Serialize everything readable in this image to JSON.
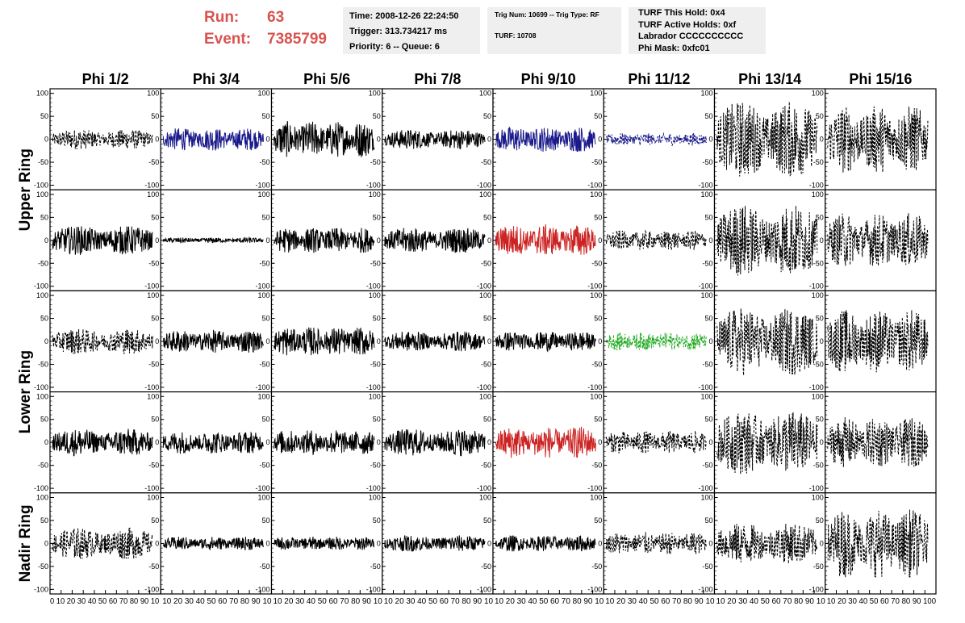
{
  "header": {
    "run_label": "Run:",
    "run_value": "63",
    "event_label": "Event:",
    "event_value": "7385799"
  },
  "info_time": {
    "line1": "Time: 2008-12-26 22:24:50",
    "line2": "Trigger: 313.734217 ms",
    "line3": "Priority: 6 -- Queue: 6"
  },
  "info_trig": {
    "line1": "Trig Num: 10699 -- Trig Type: RF",
    "line2": "TURF: 10708"
  },
  "info_turf": {
    "line1": "TURF This Hold: 0x4",
    "line2": "TURF Active Holds: 0xf",
    "line3": "Labrador CCCCCCCCCC",
    "line4": "Phi Mask: 0xfc01"
  },
  "chart_data": {
    "type": "line",
    "columns": [
      "Phi 1/2",
      "Phi 3/4",
      "Phi 5/6",
      "Phi 7/8",
      "Phi 9/10",
      "Phi 11/12",
      "Phi 13/14",
      "Phi 15/16"
    ],
    "row_groups": [
      {
        "label": "Upper Ring",
        "rows": [
          0,
          1
        ]
      },
      {
        "label": "Lower Ring",
        "rows": [
          2,
          3
        ]
      },
      {
        "label": "Nadir Ring",
        "rows": [
          4
        ]
      }
    ],
    "ylim": [
      -110,
      110
    ],
    "xlim": [
      0,
      100
    ],
    "y_ticks": [
      100,
      50,
      0,
      -50,
      -100
    ],
    "x_ticks": [
      0,
      10,
      20,
      30,
      40,
      50,
      60,
      70,
      80,
      90,
      100
    ],
    "x_tick_labels_first": "0 10 20 30 40 50 60 70 80 90 10",
    "x_tick_labels_rest": "10 20 30 40 50 60 70 80 90 10",
    "x_tick_labels_last": "10 20 30 40 50 60 70 80 90 100",
    "colors": {
      "blue": "#1a1a8c",
      "red": "#cc2222",
      "green": "#22aa22",
      "black": "#000000"
    },
    "traces": [
      [
        {
          "amp": 22,
          "style": "dashed",
          "color": "black"
        },
        {
          "amp": 25,
          "style": "solid",
          "color": "blue"
        },
        {
          "amp": 40,
          "style": "solid",
          "color": "black"
        },
        {
          "amp": 22,
          "style": "solid",
          "color": "black"
        },
        {
          "amp": 28,
          "style": "solid",
          "color": "blue"
        },
        {
          "amp": 14,
          "style": "dashed",
          "color": "blue"
        },
        {
          "amp": 85,
          "style": "dashed",
          "color": "black"
        },
        {
          "amp": 75,
          "style": "dashed",
          "color": "black"
        }
      ],
      [
        {
          "amp": 32,
          "style": "solid",
          "color": "black"
        },
        {
          "amp": 6,
          "style": "solid",
          "color": "black"
        },
        {
          "amp": 28,
          "style": "solid",
          "color": "black"
        },
        {
          "amp": 28,
          "style": "solid",
          "color": "black"
        },
        {
          "amp": 35,
          "style": "solid",
          "color": "red"
        },
        {
          "amp": 22,
          "style": "dashed",
          "color": "black"
        },
        {
          "amp": 80,
          "style": "dashed",
          "color": "black"
        },
        {
          "amp": 60,
          "style": "dashed",
          "color": "black"
        }
      ],
      [
        {
          "amp": 28,
          "style": "dashed",
          "color": "black"
        },
        {
          "amp": 25,
          "style": "solid",
          "color": "black"
        },
        {
          "amp": 32,
          "style": "solid",
          "color": "black"
        },
        {
          "amp": 22,
          "style": "solid",
          "color": "black"
        },
        {
          "amp": 22,
          "style": "solid",
          "color": "black"
        },
        {
          "amp": 20,
          "style": "dashed",
          "color": "green"
        },
        {
          "amp": 75,
          "style": "dashed",
          "color": "black"
        },
        {
          "amp": 70,
          "style": "dashed",
          "color": "black"
        }
      ],
      [
        {
          "amp": 30,
          "style": "solid",
          "color": "black"
        },
        {
          "amp": 25,
          "style": "solid",
          "color": "black"
        },
        {
          "amp": 28,
          "style": "solid",
          "color": "black"
        },
        {
          "amp": 30,
          "style": "solid",
          "color": "black"
        },
        {
          "amp": 35,
          "style": "solid",
          "color": "red"
        },
        {
          "amp": 25,
          "style": "dashed",
          "color": "black"
        },
        {
          "amp": 70,
          "style": "dashed",
          "color": "black"
        },
        {
          "amp": 55,
          "style": "dashed",
          "color": "black"
        }
      ],
      [
        {
          "amp": 35,
          "style": "dashed",
          "color": "black"
        },
        {
          "amp": 15,
          "style": "solid",
          "color": "black"
        },
        {
          "amp": 15,
          "style": "solid",
          "color": "black"
        },
        {
          "amp": 18,
          "style": "solid",
          "color": "black"
        },
        {
          "amp": 18,
          "style": "solid",
          "color": "black"
        },
        {
          "amp": 25,
          "style": "dashed",
          "color": "black"
        },
        {
          "amp": 45,
          "style": "dashed",
          "color": "black"
        },
        {
          "amp": 75,
          "style": "dashed",
          "color": "black"
        }
      ]
    ]
  }
}
